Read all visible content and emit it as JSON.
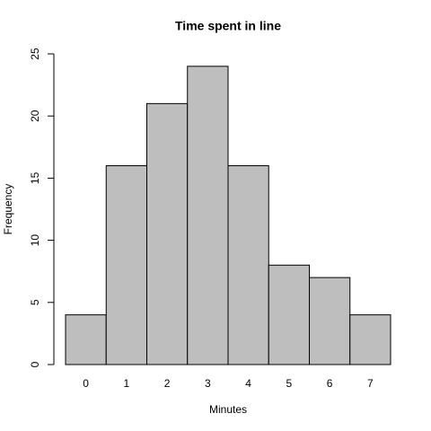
{
  "chart_data": {
    "type": "bar",
    "title": "Time spent in line",
    "x_label": "Minutes",
    "y_label": "Frequency",
    "categories": [
      "0",
      "1",
      "2",
      "3",
      "4",
      "5",
      "6",
      "7"
    ],
    "values": [
      4,
      16,
      21,
      24,
      16,
      8,
      7,
      4
    ],
    "color": "#bebebe",
    "ylim": [
      0,
      25
    ],
    "yticks": [
      0,
      5,
      10,
      15,
      20,
      25
    ],
    "grid": false
  }
}
